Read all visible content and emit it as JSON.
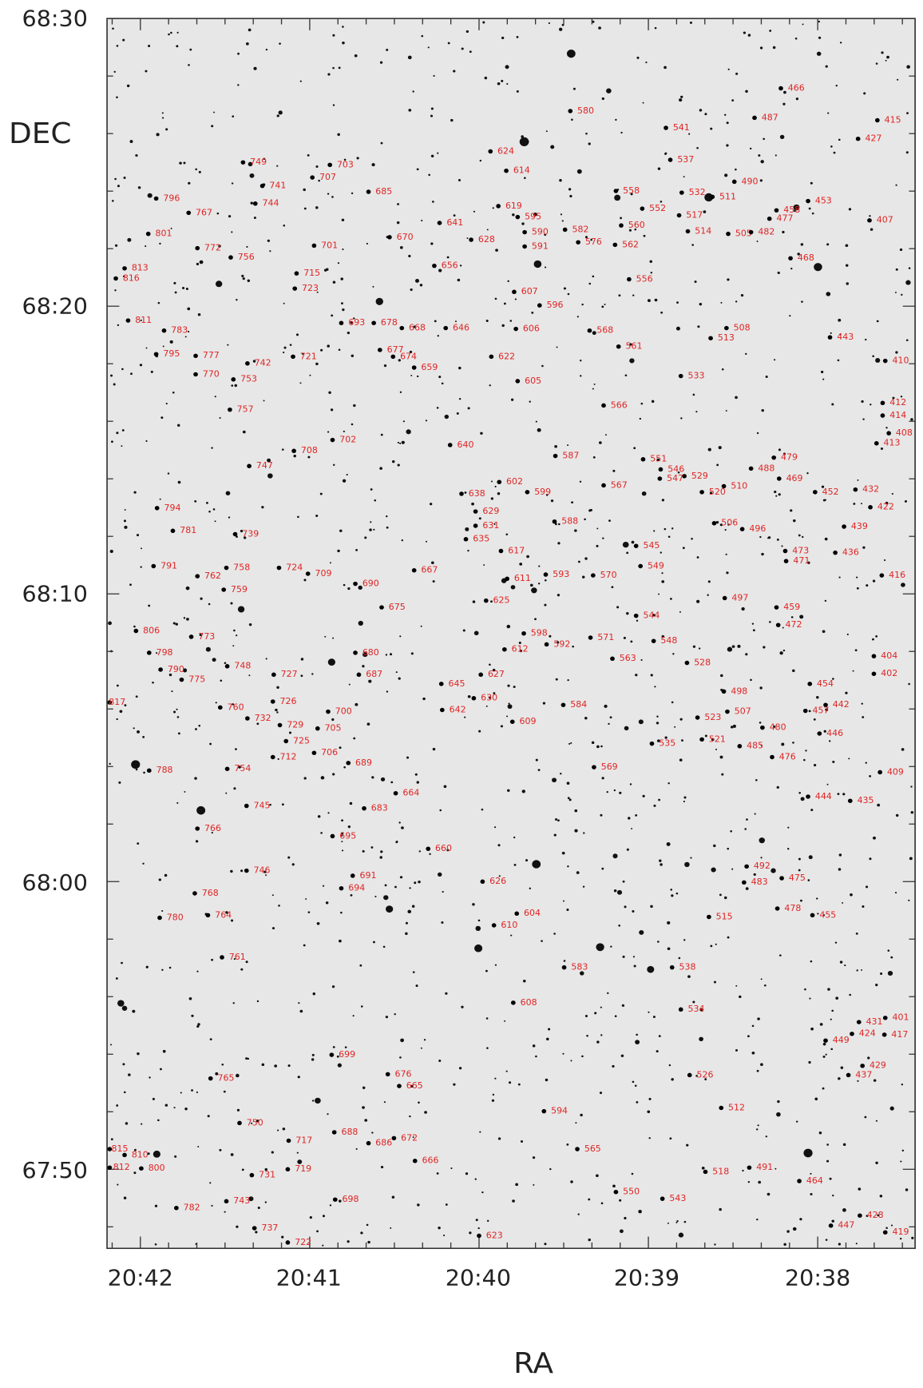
{
  "axes": {
    "y_label": "DEC",
    "x_label": "RA",
    "y_ticks": [
      "68:30",
      "68:20",
      "68:10",
      "68:00",
      "67:50"
    ],
    "x_ticks": [
      "20:42",
      "20:41",
      "20:40",
      "20:39",
      "20:38"
    ]
  },
  "stars": [
    "466",
    "487",
    "415",
    "580",
    "541",
    "427",
    "624",
    "537",
    "749",
    "703",
    "614",
    "707",
    "490",
    "741",
    "558",
    "685",
    "532",
    "511",
    "796",
    "453",
    "744",
    "619",
    "552",
    "458",
    "767",
    "517",
    "477",
    "641",
    "595",
    "560",
    "407",
    "514",
    "582",
    "801",
    "670",
    "590",
    "505",
    "482",
    "628",
    "576",
    "562",
    "591",
    "701",
    "772",
    "756",
    "468",
    "813",
    "656",
    "715",
    "816",
    "556",
    "723",
    "607",
    "596",
    "811",
    "693",
    "678",
    "668",
    "646",
    "606",
    "568",
    "508",
    "783",
    "443",
    "513",
    "561",
    "795",
    "777",
    "742",
    "721",
    "677",
    "674",
    "622",
    "410",
    "659",
    "770",
    "533",
    "753",
    "605",
    "412",
    "566",
    "757",
    "414",
    "408",
    "702",
    "413",
    "640",
    "708",
    "587",
    "479",
    "551",
    "747",
    "488",
    "546",
    "529",
    "547",
    "602",
    "469",
    "567",
    "510",
    "599",
    "520",
    "452",
    "432",
    "638",
    "794",
    "422",
    "629",
    "588",
    "506",
    "496",
    "781",
    "631",
    "739",
    "439",
    "635",
    "617",
    "473",
    "436",
    "545",
    "471",
    "549",
    "791",
    "758",
    "724",
    "709",
    "667",
    "593",
    "570",
    "611",
    "416",
    "762",
    "690",
    "759",
    "497",
    "625",
    "675",
    "459",
    "544",
    "472",
    "806",
    "598",
    "773",
    "571",
    "548",
    "592",
    "612",
    "798",
    "680",
    "563",
    "404",
    "528",
    "748",
    "790",
    "727",
    "687",
    "402",
    "627",
    "775",
    "645",
    "454",
    "498",
    "630",
    "726",
    "817",
    "442",
    "584",
    "642",
    "760",
    "700",
    "507",
    "457",
    "523",
    "732",
    "609",
    "729",
    "705",
    "480",
    "446",
    "725",
    "535",
    "521",
    "485",
    "712",
    "706",
    "476",
    "689",
    "788",
    "754",
    "569",
    "409",
    "664",
    "444",
    "435",
    "745",
    "683",
    "766",
    "695",
    "660",
    "492",
    "746",
    "691",
    "626",
    "483",
    "475",
    "694",
    "768",
    "478",
    "764",
    "780",
    "604",
    "515",
    "455",
    "610",
    "761",
    "583",
    "538",
    "608",
    "534",
    "401",
    "431",
    "424",
    "417",
    "449",
    "699",
    "429",
    "526",
    "437",
    "765",
    "676",
    "665",
    "512",
    "594",
    "750",
    "688",
    "717",
    "672",
    "686",
    "815",
    "810",
    "565",
    "666",
    "812",
    "800",
    "719",
    "491",
    "518",
    "731",
    "464",
    "550",
    "543",
    "698",
    "743",
    "782",
    "428",
    "447",
    "737",
    "419",
    "623",
    "722"
  ]
}
